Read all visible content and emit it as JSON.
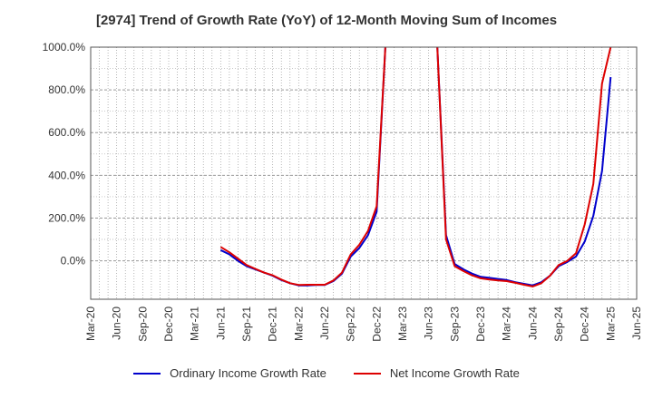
{
  "chart_data": {
    "type": "line",
    "title": "[2974]  Trend of Growth Rate (YoY) of 12-Month Moving Sum of Incomes",
    "x_ticks": [
      "Mar-20",
      "Jun-20",
      "Sep-20",
      "Dec-20",
      "Mar-21",
      "Jun-21",
      "Sep-21",
      "Dec-21",
      "Mar-22",
      "Jun-22",
      "Sep-22",
      "Dec-22",
      "Mar-23",
      "Jun-23",
      "Sep-23",
      "Dec-23",
      "Mar-24",
      "Jun-24",
      "Sep-24",
      "Dec-24",
      "Mar-25",
      "Jun-25"
    ],
    "y_ticks": [
      "0.0%",
      "200.0%",
      "400.0%",
      "600.0%",
      "800.0%",
      "1000.0%"
    ],
    "ylim": [
      -180,
      1000
    ],
    "xlim": [
      "2020-03",
      "2025-06"
    ],
    "grid": true,
    "legend_position": "bottom",
    "series": [
      {
        "name": "Ordinary Income Growth Rate",
        "color": "#0000cc",
        "points": [
          [
            "2021-06",
            50
          ],
          [
            "2021-07",
            30
          ],
          [
            "2021-08",
            0
          ],
          [
            "2021-09",
            -25
          ],
          [
            "2021-10",
            -40
          ],
          [
            "2021-11",
            -55
          ],
          [
            "2021-12",
            -70
          ],
          [
            "2022-01",
            -90
          ],
          [
            "2022-02",
            -105
          ],
          [
            "2022-03",
            -115
          ],
          [
            "2022-04",
            -115
          ],
          [
            "2022-05",
            -113
          ],
          [
            "2022-06",
            -113
          ],
          [
            "2022-07",
            -95
          ],
          [
            "2022-08",
            -60
          ],
          [
            "2022-09",
            20
          ],
          [
            "2022-10",
            60
          ],
          [
            "2022-11",
            120
          ],
          [
            "2022-12",
            230
          ],
          [
            "2023-01",
            1000
          ],
          [
            "2023-07",
            1000
          ],
          [
            "2023-08",
            120
          ],
          [
            "2023-09",
            -15
          ],
          [
            "2023-10",
            -40
          ],
          [
            "2023-11",
            -60
          ],
          [
            "2023-12",
            -75
          ],
          [
            "2024-01",
            -80
          ],
          [
            "2024-02",
            -85
          ],
          [
            "2024-03",
            -90
          ],
          [
            "2024-04",
            -100
          ],
          [
            "2024-05",
            -108
          ],
          [
            "2024-06",
            -115
          ],
          [
            "2024-07",
            -100
          ],
          [
            "2024-08",
            -70
          ],
          [
            "2024-09",
            -25
          ],
          [
            "2024-10",
            -5
          ],
          [
            "2024-11",
            20
          ],
          [
            "2024-12",
            90
          ],
          [
            "2025-01",
            210
          ],
          [
            "2025-02",
            420
          ],
          [
            "2025-03",
            860
          ]
        ]
      },
      {
        "name": "Net Income Growth Rate",
        "color": "#dd0000",
        "points": [
          [
            "2021-06",
            65
          ],
          [
            "2021-07",
            40
          ],
          [
            "2021-08",
            10
          ],
          [
            "2021-09",
            -20
          ],
          [
            "2021-10",
            -38
          ],
          [
            "2021-11",
            -55
          ],
          [
            "2021-12",
            -68
          ],
          [
            "2022-01",
            -88
          ],
          [
            "2022-02",
            -105
          ],
          [
            "2022-03",
            -113
          ],
          [
            "2022-04",
            -112
          ],
          [
            "2022-05",
            -112
          ],
          [
            "2022-06",
            -112
          ],
          [
            "2022-07",
            -92
          ],
          [
            "2022-08",
            -55
          ],
          [
            "2022-09",
            30
          ],
          [
            "2022-10",
            75
          ],
          [
            "2022-11",
            140
          ],
          [
            "2022-12",
            255
          ],
          [
            "2023-01",
            1000
          ],
          [
            "2023-07",
            1000
          ],
          [
            "2023-08",
            100
          ],
          [
            "2023-09",
            -25
          ],
          [
            "2023-10",
            -48
          ],
          [
            "2023-11",
            -68
          ],
          [
            "2023-12",
            -82
          ],
          [
            "2024-01",
            -88
          ],
          [
            "2024-02",
            -92
          ],
          [
            "2024-03",
            -95
          ],
          [
            "2024-04",
            -103
          ],
          [
            "2024-05",
            -112
          ],
          [
            "2024-06",
            -120
          ],
          [
            "2024-07",
            -105
          ],
          [
            "2024-08",
            -70
          ],
          [
            "2024-09",
            -20
          ],
          [
            "2024-10",
            0
          ],
          [
            "2024-11",
            35
          ],
          [
            "2024-12",
            170
          ],
          [
            "2025-01",
            360
          ],
          [
            "2025-02",
            830
          ],
          [
            "2025-03",
            1000
          ]
        ]
      }
    ]
  }
}
